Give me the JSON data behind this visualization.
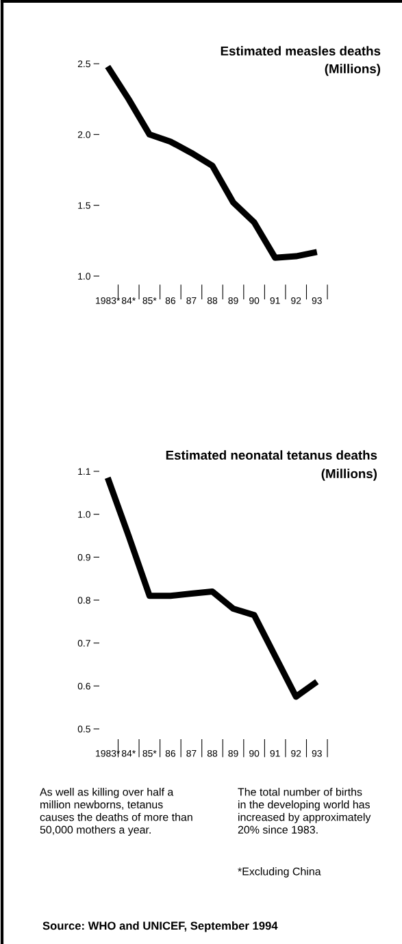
{
  "chart_data": [
    {
      "type": "line",
      "title": "Estimated measles deaths",
      "subtitle": "(Millions)",
      "categories": [
        "1983*",
        "84*",
        "85*",
        "86",
        "87",
        "88",
        "89",
        "90",
        "91",
        "92",
        "93"
      ],
      "series": [
        {
          "color": "#000000",
          "values": [
            2.48,
            2.25,
            2.0,
            1.95,
            1.87,
            1.78,
            1.52,
            1.38,
            1.13,
            1.14,
            1.17
          ]
        }
      ],
      "ylim": [
        1.0,
        2.5
      ],
      "yticks": [
        {
          "value": 1.0,
          "label": "1.0"
        },
        {
          "value": 1.5,
          "label": "1.5"
        },
        {
          "value": 2.0,
          "label": "2.0"
        },
        {
          "value": 2.5,
          "label": "2.5"
        }
      ],
      "grid": false,
      "marker": "none",
      "line_style": "solid"
    },
    {
      "type": "line",
      "title": "Estimated neonatal tetanus deaths",
      "subtitle": "(Millions)",
      "categories": [
        "1983*",
        "84*",
        "85*",
        "86",
        "87",
        "88",
        "89",
        "90",
        "91",
        "92",
        "93"
      ],
      "series": [
        {
          "color": "#000000",
          "values": [
            1.085,
            0.95,
            0.81,
            0.81,
            0.815,
            0.82,
            0.78,
            0.765,
            0.67,
            0.575,
            0.61
          ]
        }
      ],
      "ylim": [
        0.5,
        1.1
      ],
      "yticks": [
        0.5,
        0.6,
        0.7,
        0.8,
        0.9,
        {
          "value": 1.0,
          "label": "1.0"
        },
        1.1
      ],
      "grid": false,
      "marker": "none",
      "line_style": "solid",
      "annotations": [
        "As well as killing over half a\nmillion newborns, tetanus\ncauses the deaths of more than\n50,000 mothers a year.",
        "The total number of births\nin the developing world has\nincreased by approximately\n20% since 1983.",
        "*Excluding China",
        "Source: WHO and UNICEF, September 1994"
      ]
    }
  ]
}
